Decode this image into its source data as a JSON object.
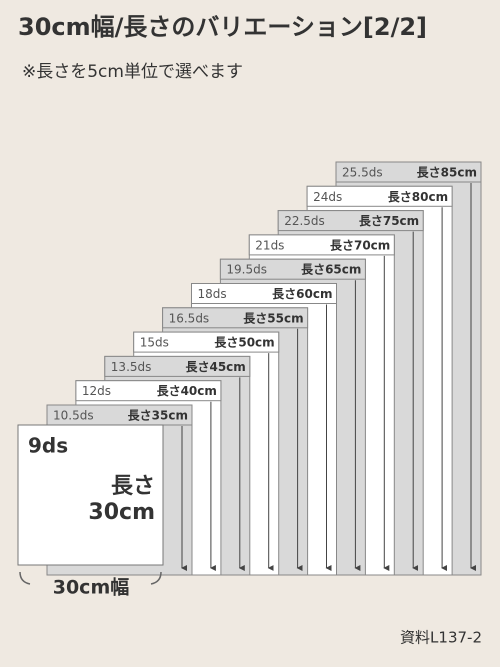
{
  "header": {
    "title": "30cm幅/長さのバリエーション[2/2]",
    "subtitle": "※長さを5cm単位で選べます"
  },
  "front": {
    "ds": "9ds",
    "length_label": "長さ",
    "length": "30cm",
    "width": "30cm幅"
  },
  "panels": [
    {
      "ds": "10.5ds",
      "length": "長さ35cm"
    },
    {
      "ds": "12ds",
      "length": "長さ40cm"
    },
    {
      "ds": "13.5ds",
      "length": "長さ45cm"
    },
    {
      "ds": "15ds",
      "length": "長さ50cm"
    },
    {
      "ds": "16.5ds",
      "length": "長さ55cm"
    },
    {
      "ds": "18ds",
      "length": "長さ60cm"
    },
    {
      "ds": "19.5ds",
      "length": "長さ65cm"
    },
    {
      "ds": "21ds",
      "length": "長さ70cm"
    },
    {
      "ds": "22.5ds",
      "length": "長さ75cm"
    },
    {
      "ds": "24ds",
      "length": "長さ80cm"
    },
    {
      "ds": "25.5ds",
      "length": "長さ85cm"
    }
  ],
  "footer": {
    "ref": "資料L137-2"
  }
}
